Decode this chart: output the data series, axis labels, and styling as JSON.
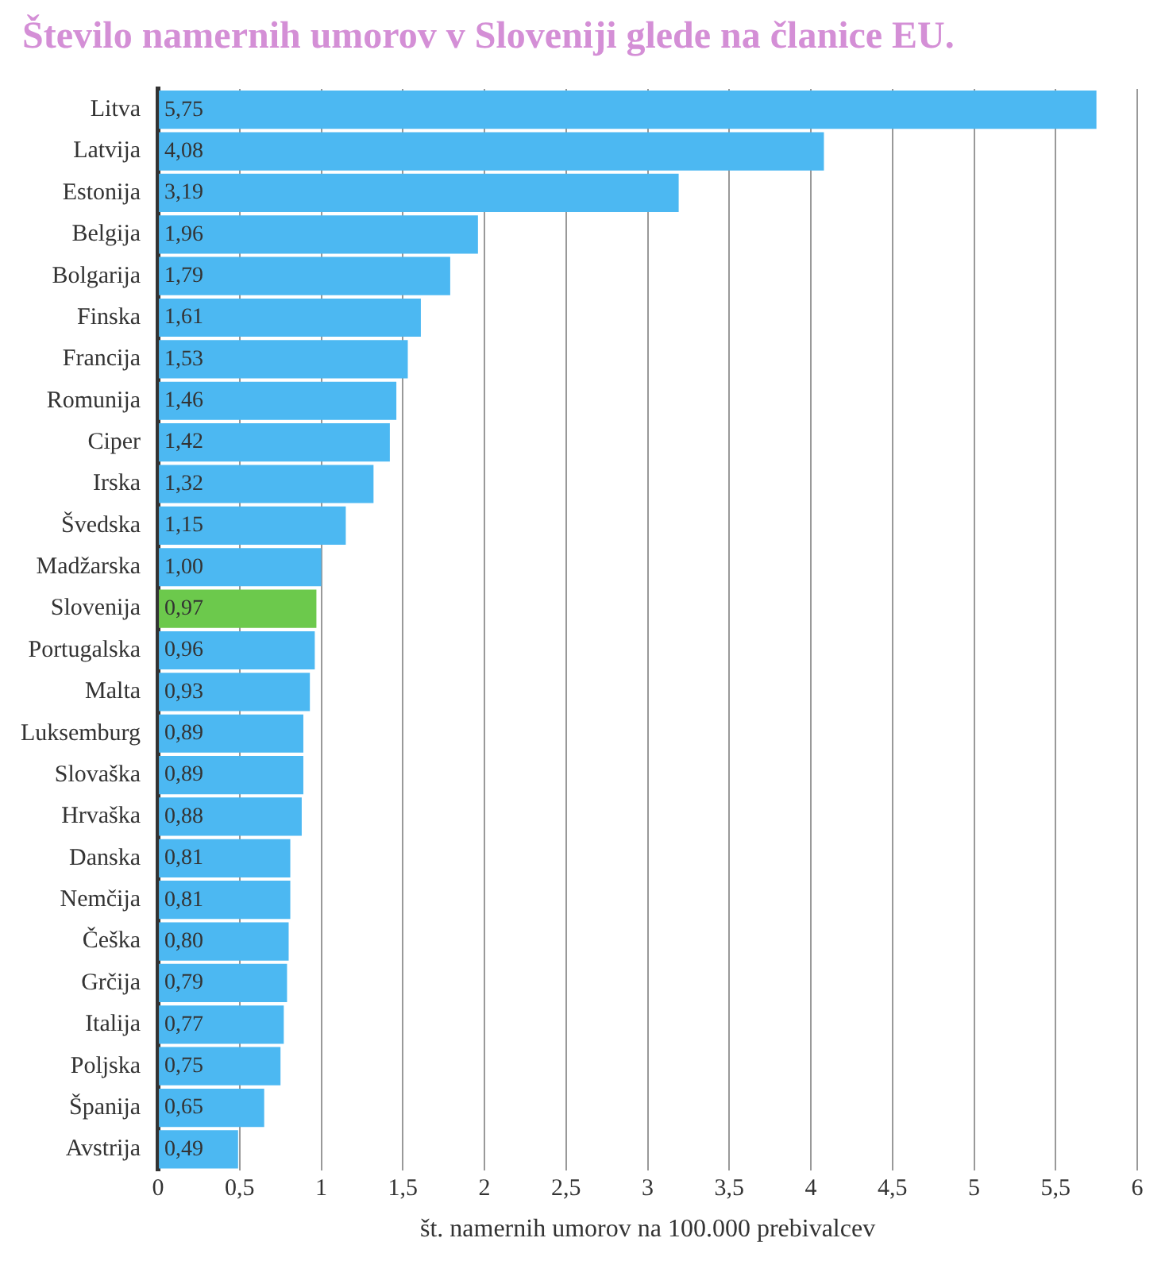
{
  "chart_data": {
    "type": "bar",
    "orientation": "horizontal",
    "title": "Število namernih umorov v Sloveniji glede na članice EU.",
    "xlabel": "št. namernih umorov na 100.000 prebivalcev",
    "categories": [
      "Litva",
      "Latvija",
      "Estonija",
      "Belgija",
      "Bolgarija",
      "Finska",
      "Francija",
      "Romunija",
      "Ciper",
      "Irska",
      "Švedska",
      "Madžarska",
      "Slovenija",
      "Portugalska",
      "Malta",
      "Luksemburg",
      "Slovaška",
      "Hrvaška",
      "Danska",
      "Nemčija",
      "Češka",
      "Grčija",
      "Italija",
      "Poljska",
      "Španija",
      "Avstrija"
    ],
    "values": [
      5.75,
      4.08,
      3.19,
      1.96,
      1.79,
      1.61,
      1.53,
      1.46,
      1.42,
      1.32,
      1.15,
      1.0,
      0.97,
      0.96,
      0.93,
      0.89,
      0.89,
      0.88,
      0.81,
      0.81,
      0.8,
      0.79,
      0.77,
      0.75,
      0.65,
      0.49
    ],
    "value_labels": [
      "5,75",
      "4,08",
      "3,19",
      "1,96",
      "1,79",
      "1,61",
      "1,53",
      "1,46",
      "1,42",
      "1,32",
      "1,15",
      "1,00",
      "0,97",
      "0,96",
      "0,93",
      "0,89",
      "0,89",
      "0,88",
      "0,81",
      "0,81",
      "0,80",
      "0,79",
      "0,77",
      "0,75",
      "0,65",
      "0,49"
    ],
    "colors": [
      "#4cb8f2",
      "#4cb8f2",
      "#4cb8f2",
      "#4cb8f2",
      "#4cb8f2",
      "#4cb8f2",
      "#4cb8f2",
      "#4cb8f2",
      "#4cb8f2",
      "#4cb8f2",
      "#4cb8f2",
      "#4cb8f2",
      "#6cc94c",
      "#4cb8f2",
      "#4cb8f2",
      "#4cb8f2",
      "#4cb8f2",
      "#4cb8f2",
      "#4cb8f2",
      "#4cb8f2",
      "#4cb8f2",
      "#4cb8f2",
      "#4cb8f2",
      "#4cb8f2",
      "#4cb8f2",
      "#4cb8f2"
    ],
    "xlim": [
      0,
      6
    ],
    "xticks": [
      0,
      {
        "value": 0.5,
        "label": "0,5"
      },
      1,
      {
        "value": 1.5,
        "label": "1,5"
      },
      2,
      {
        "value": 2.5,
        "label": "2,5"
      },
      3,
      {
        "value": 3.5,
        "label": "3,5"
      },
      4,
      {
        "value": 4.5,
        "label": "4,5"
      },
      5,
      {
        "value": 5.5,
        "label": "5,5"
      },
      6
    ],
    "grid": "x",
    "legend": false
  }
}
